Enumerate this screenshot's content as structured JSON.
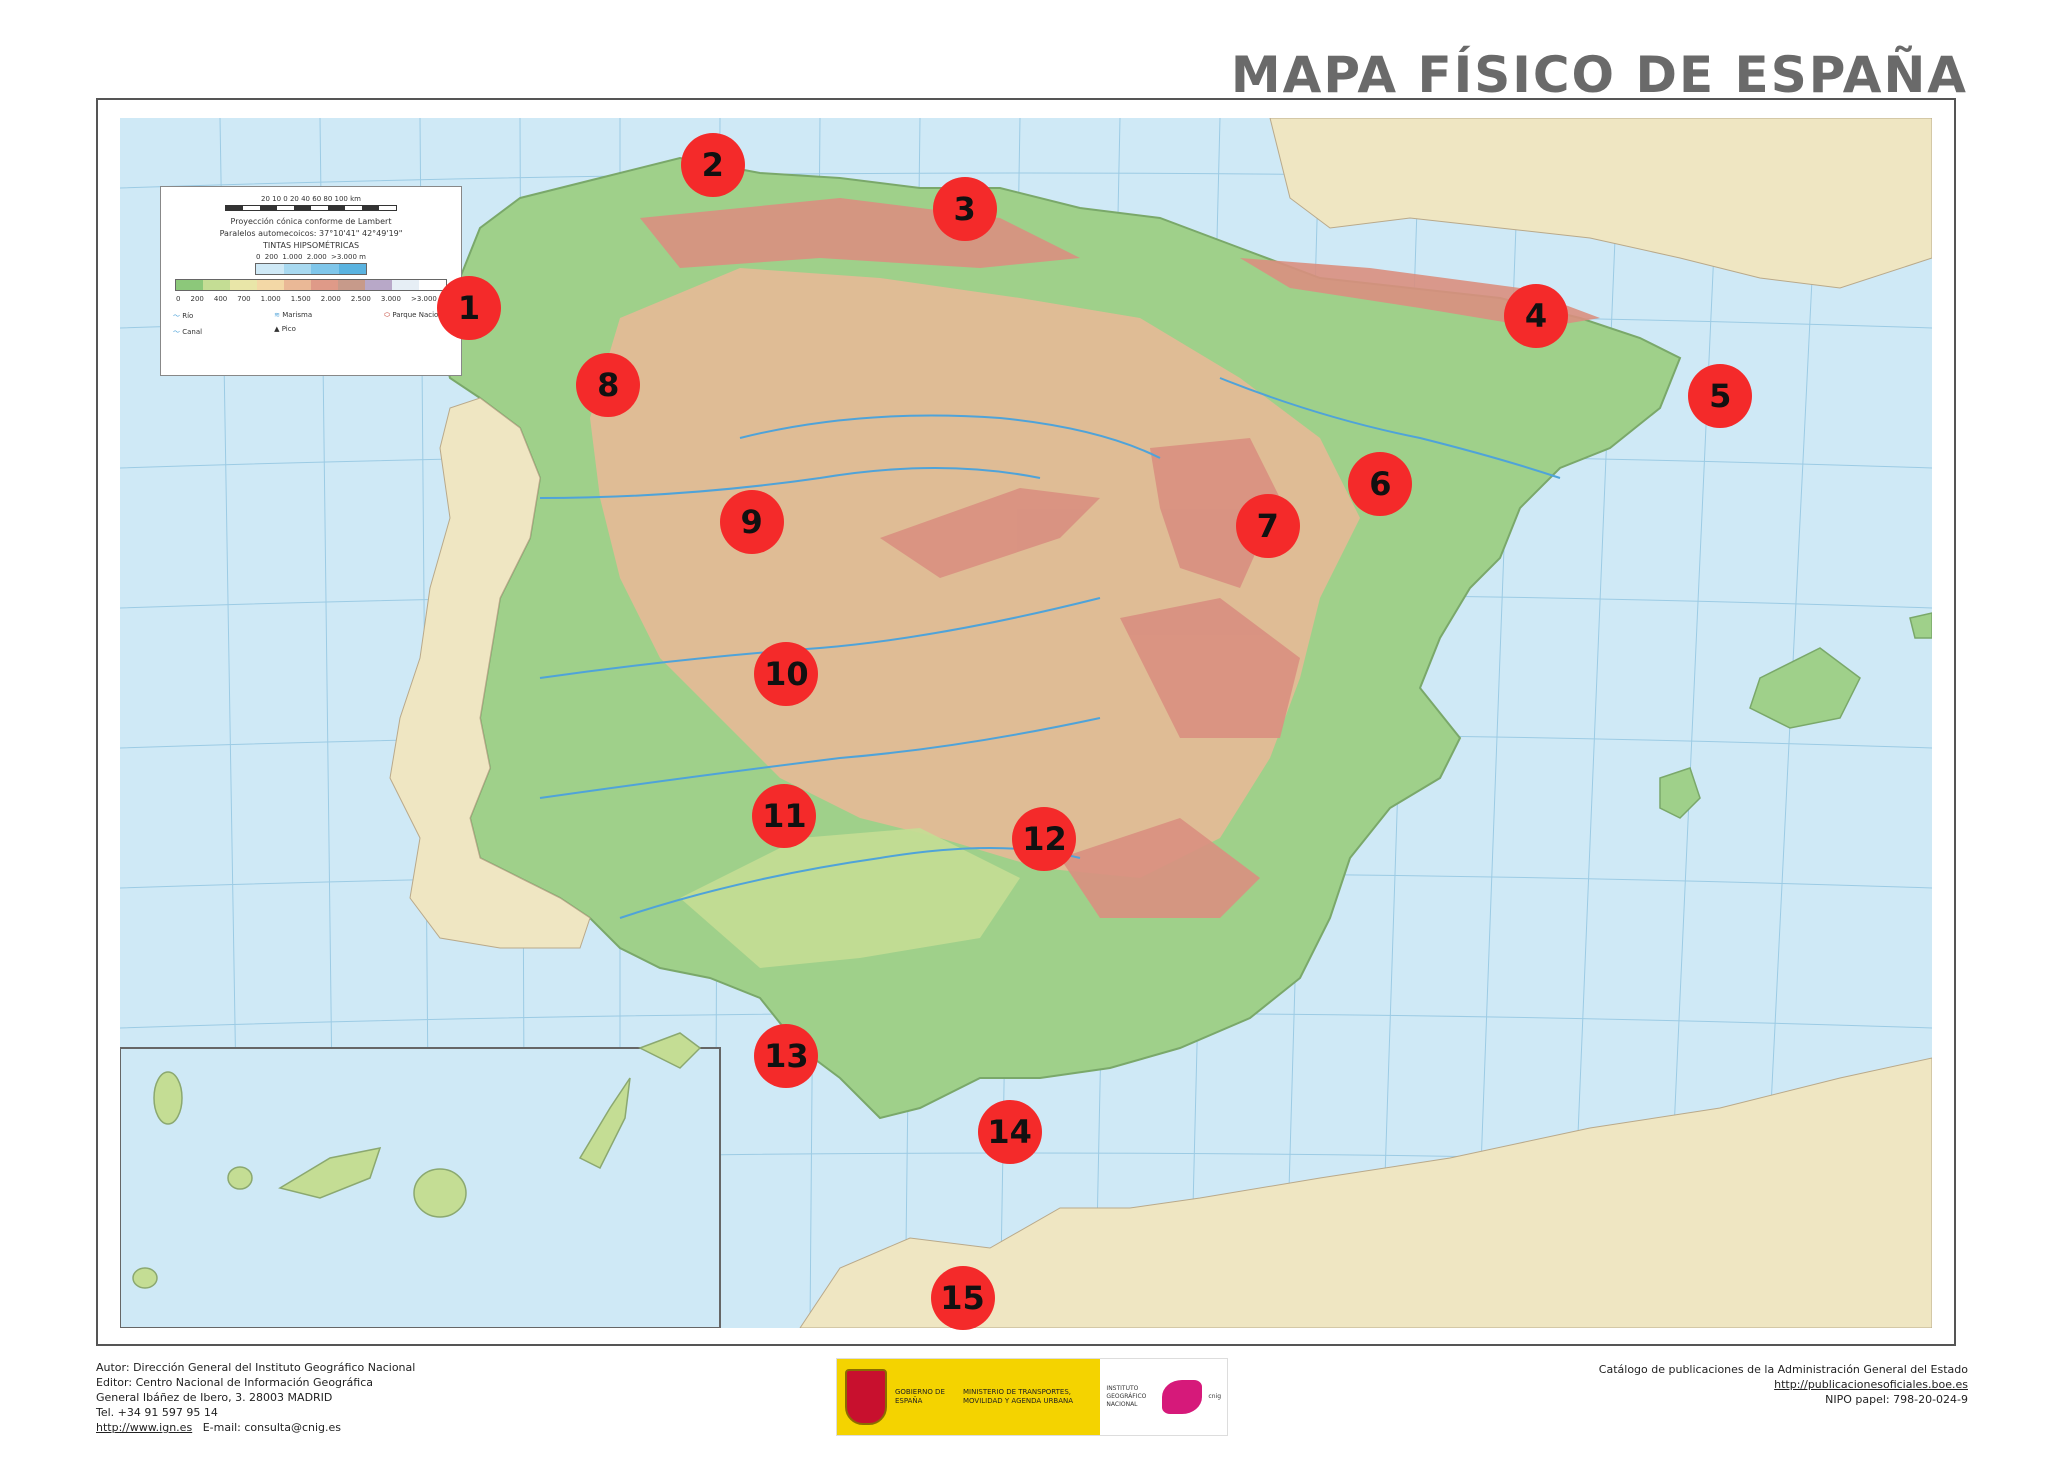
{
  "title": "MAPA FÍSICO DE ESPAÑA",
  "legend": {
    "scale_numbers": "20 10 0 20 40 60 80 100 km",
    "projection": "Proyección cónica conforme de Lambert",
    "parallels": "Paralelos automecoicos: 37°10'41\" 42°49'19\"",
    "tints_title": "TINTAS HIPSOMÉTRICAS",
    "sea_numbers": [
      "0",
      "200",
      "1.000",
      "2.000",
      ">3.000 m"
    ],
    "land_numbers": [
      "0",
      "200",
      "400",
      "700",
      "1.000",
      "1.500",
      "2.000",
      "2.500",
      "3.000",
      ">3.000 m"
    ],
    "river_label": "Río",
    "canal_label": "Canal",
    "marsh_label": "Marisma",
    "peak_label": "Pico",
    "park_label": "Parque Nacional",
    "tint_colors": [
      "#8cc87a",
      "#c4dd94",
      "#e9e6a8",
      "#f3d8a6",
      "#eab896",
      "#df9a88",
      "#c79a8a",
      "#b8a8c8",
      "#e6eef5",
      "#ffffff"
    ],
    "sea_colors": [
      "#cfe9f6",
      "#a8d9f0",
      "#7fc6ea",
      "#5ab3e0"
    ]
  },
  "markers": [
    {
      "label": "1",
      "x": 0.229,
      "y": 0.211
    },
    {
      "label": "2",
      "x": 0.348,
      "y": 0.113
    },
    {
      "label": "3",
      "x": 0.471,
      "y": 0.143
    },
    {
      "label": "4",
      "x": 0.75,
      "y": 0.216
    },
    {
      "label": "5",
      "x": 0.84,
      "y": 0.271
    },
    {
      "label": "6",
      "x": 0.674,
      "y": 0.331
    },
    {
      "label": "7",
      "x": 0.619,
      "y": 0.36
    },
    {
      "label": "8",
      "x": 0.297,
      "y": 0.263
    },
    {
      "label": "9",
      "x": 0.367,
      "y": 0.357
    },
    {
      "label": "10",
      "x": 0.384,
      "y": 0.461
    },
    {
      "label": "11",
      "x": 0.383,
      "y": 0.558
    },
    {
      "label": "12",
      "x": 0.51,
      "y": 0.574
    },
    {
      "label": "13",
      "x": 0.384,
      "y": 0.722
    },
    {
      "label": "14",
      "x": 0.493,
      "y": 0.774
    },
    {
      "label": "15",
      "x": 0.47,
      "y": 0.888
    }
  ],
  "footer_left": {
    "author": "Autor: Dirección General del Instituto Geográfico Nacional",
    "editor": "Editor: Centro Nacional de Información Geográfica",
    "address": "General Ibáñez de Ibero, 3. 28003 MADRID",
    "phone": "Tel. +34 91 597 95 14",
    "web": "http://www.ign.es",
    "email": "E-mail: consulta@cnig.es"
  },
  "footer_right": {
    "catalog": "Catálogo de publicaciones de la Administración General del Estado",
    "catalog_url": "http://publicacionesoficiales.boe.es",
    "nipo": "NIPO papel: 798-20-024-9"
  },
  "logos": {
    "gov_text": "GOBIERNO DE ESPAÑA",
    "ministry_text": "MINISTERIO DE TRANSPORTES, MOVILIDAD Y AGENDA URBANA",
    "ign_text": "INSTITUTO GEOGRÁFICO NACIONAL",
    "cnig_text": "cnig"
  },
  "colors": {
    "marker": "#f42a2a",
    "sea": "#cfe9f6",
    "lowland": "#9fd08a",
    "plateau": "#eab896",
    "mountain": "#d98f80",
    "portugal": "#efe6c2",
    "gov_yellow": "#f4d300"
  }
}
